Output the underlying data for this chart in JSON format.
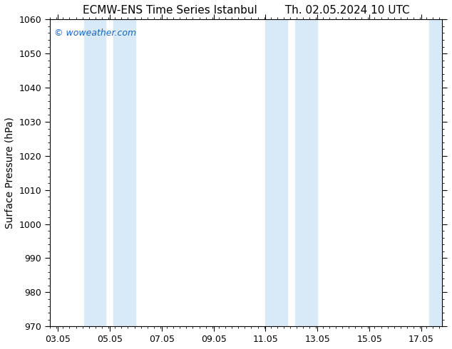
{
  "title_left": "ECMW-ENS Time Series Istanbul",
  "title_right": "Th. 02.05.2024 10 UTC",
  "ylabel": "Surface Pressure (hPa)",
  "ylim": [
    970,
    1060
  ],
  "yticks": [
    970,
    980,
    990,
    1000,
    1010,
    1020,
    1030,
    1040,
    1050,
    1060
  ],
  "xtick_labels": [
    "03.05",
    "05.05",
    "07.05",
    "09.05",
    "11.05",
    "13.05",
    "15.05",
    "17.05"
  ],
  "xtick_positions": [
    0,
    2,
    4,
    6,
    8,
    10,
    12,
    14
  ],
  "xlim": [
    -0.3,
    14.8
  ],
  "watermark": "© woweather.com",
  "watermark_color": "#1565C0",
  "background_color": "#ffffff",
  "plot_bg_color": "#ffffff",
  "shaded_bands": [
    {
      "x_start": 1.0,
      "x_end": 1.85,
      "color": "#d8eaf7"
    },
    {
      "x_start": 2.15,
      "x_end": 3.0,
      "color": "#d8eaf7"
    },
    {
      "x_start": 8.0,
      "x_end": 8.85,
      "color": "#d8eaf7"
    },
    {
      "x_start": 9.15,
      "x_end": 10.0,
      "color": "#d8eaf7"
    },
    {
      "x_start": 14.3,
      "x_end": 14.8,
      "color": "#d8eaf7"
    }
  ],
  "tick_color": "#000000",
  "title_fontsize": 11,
  "axis_label_fontsize": 10,
  "tick_fontsize": 9
}
